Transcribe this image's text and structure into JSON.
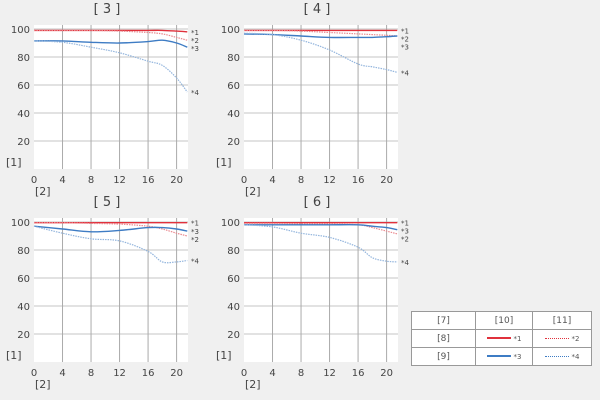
{
  "colors": {
    "s1": "#e0313c",
    "s2": "#ea8a90",
    "s3": "#3e7cc4",
    "s4": "#93b5dd"
  },
  "chart_data": [
    {
      "type": "line",
      "title": "[ 3 ]",
      "ylabel": "[1]",
      "xlabel": "[2]",
      "xlim": [
        0,
        21.6
      ],
      "ylim": [
        0,
        100
      ],
      "xticks": [
        0,
        4,
        8,
        12,
        16,
        20
      ],
      "yticks": [
        20,
        40,
        60,
        80,
        100
      ],
      "grid": true,
      "x": [
        0,
        4,
        8,
        12,
        16,
        18,
        20,
        21.5
      ],
      "series": [
        {
          "name": "*1",
          "values": [
            99,
            99,
            99,
            99,
            99,
            99,
            98.5,
            98
          ]
        },
        {
          "name": "*2",
          "values": [
            99,
            99,
            99,
            98.5,
            97.5,
            96.5,
            94,
            92
          ]
        },
        {
          "name": "*3",
          "values": [
            91.5,
            91.5,
            90.5,
            90,
            91,
            92,
            90,
            87
          ]
        },
        {
          "name": "*4",
          "values": [
            91.5,
            90.5,
            87,
            83,
            77,
            74,
            65,
            55
          ]
        }
      ]
    },
    {
      "type": "line",
      "title": "[ 4 ]",
      "ylabel": "[1]",
      "xlabel": "[2]",
      "xlim": [
        0,
        21.6
      ],
      "ylim": [
        0,
        100
      ],
      "xticks": [
        0,
        4,
        8,
        12,
        16,
        20
      ],
      "yticks": [
        20,
        40,
        60,
        80,
        100
      ],
      "grid": true,
      "x": [
        0,
        4,
        8,
        12,
        16,
        18,
        20,
        21.5
      ],
      "series": [
        {
          "name": "*1",
          "values": [
            99,
            99,
            99,
            99,
            99,
            99,
            99,
            99
          ]
        },
        {
          "name": "*2",
          "values": [
            99,
            99,
            98.5,
            97.5,
            96.5,
            96,
            95.5,
            95
          ]
        },
        {
          "name": "*3",
          "values": [
            96.5,
            96,
            95,
            94,
            94,
            94,
            94.5,
            95
          ]
        },
        {
          "name": "*4",
          "values": [
            97,
            96,
            92,
            85,
            75,
            73,
            71,
            69
          ]
        }
      ]
    },
    {
      "type": "line",
      "title": "[ 5 ]",
      "ylabel": "[1]",
      "xlabel": "[2]",
      "xlim": [
        0,
        21.6
      ],
      "ylim": [
        0,
        100
      ],
      "xticks": [
        0,
        4,
        8,
        12,
        16,
        20
      ],
      "yticks": [
        20,
        40,
        60,
        80,
        100
      ],
      "grid": true,
      "x": [
        0,
        4,
        8,
        12,
        16,
        18,
        20,
        21.5
      ],
      "series": [
        {
          "name": "*1",
          "values": [
            99.5,
            99.5,
            99.5,
            99.5,
            99.5,
            99.5,
            99.5,
            99.5
          ]
        },
        {
          "name": "*2",
          "values": [
            99.5,
            99.5,
            99,
            98.5,
            97,
            95,
            92,
            90
          ]
        },
        {
          "name": "*3",
          "values": [
            97,
            95,
            93,
            94,
            96,
            96,
            95,
            93.5
          ]
        },
        {
          "name": "*4",
          "values": [
            97,
            92,
            88,
            86.5,
            79,
            71.5,
            71.5,
            72.5
          ]
        }
      ]
    },
    {
      "type": "line",
      "title": "[ 6 ]",
      "ylabel": "[1]",
      "xlabel": "[2]",
      "xlim": [
        0,
        21.6
      ],
      "ylim": [
        0,
        100
      ],
      "xticks": [
        0,
        4,
        8,
        12,
        16,
        20
      ],
      "yticks": [
        20,
        40,
        60,
        80,
        100
      ],
      "grid": true,
      "x": [
        0,
        4,
        8,
        12,
        16,
        18,
        20,
        21.5
      ],
      "series": [
        {
          "name": "*1",
          "values": [
            99.5,
            99.5,
            99.5,
            99.5,
            99.5,
            99.5,
            99.5,
            99.5
          ]
        },
        {
          "name": "*2",
          "values": [
            99,
            99,
            98.5,
            98.5,
            98,
            96,
            93.5,
            91.5
          ]
        },
        {
          "name": "*3",
          "values": [
            98,
            98,
            98,
            98,
            98,
            97,
            96,
            94.5
          ]
        },
        {
          "name": "*4",
          "values": [
            98,
            96.5,
            92,
            89,
            82,
            74.5,
            72,
            71.5
          ]
        }
      ]
    }
  ],
  "legend": {
    "header": [
      "[7]",
      "[10]",
      "[11]"
    ],
    "rows": [
      {
        "label": "[8]",
        "a": "*1",
        "b": "*2"
      },
      {
        "label": "[9]",
        "a": "*3",
        "b": "*4"
      }
    ]
  }
}
